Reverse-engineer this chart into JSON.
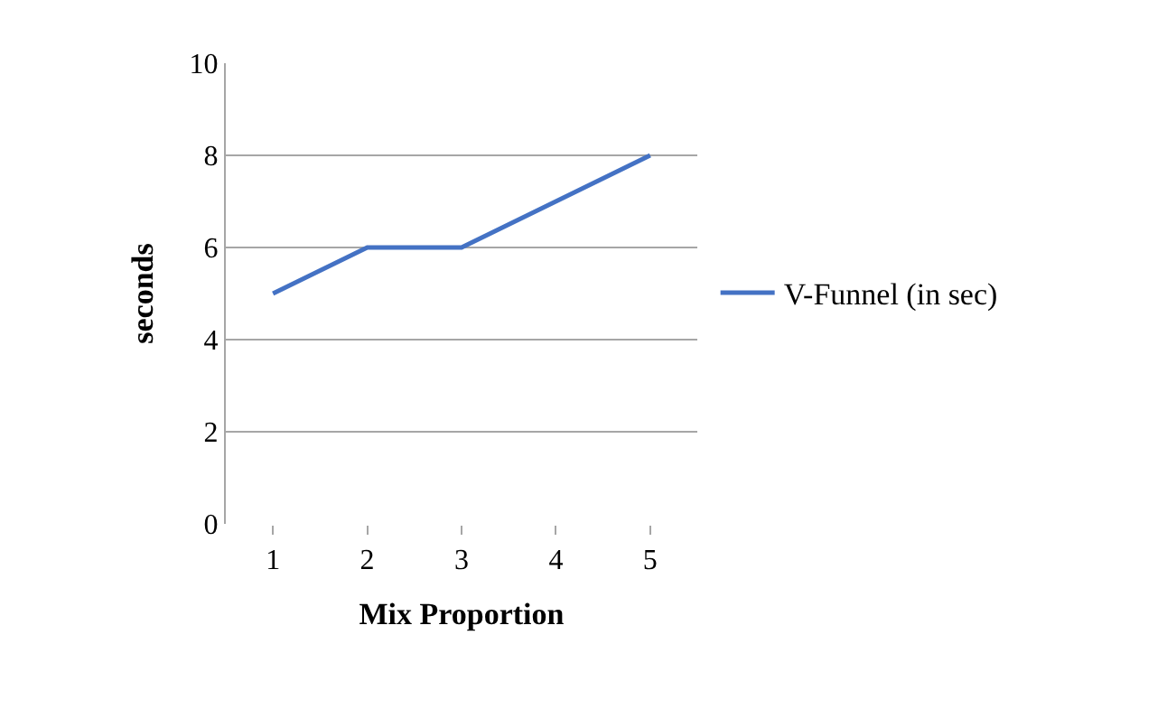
{
  "chart_data": {
    "type": "line",
    "xlabel": "Mix Proportion",
    "ylabel": "seconds",
    "categories": [
      "1",
      "2",
      "3",
      "4",
      "5"
    ],
    "series": [
      {
        "name": "V-Funnel (in sec)",
        "color": "#4472c4",
        "values": [
          5,
          6,
          6,
          7,
          8
        ]
      }
    ],
    "ylim": [
      0,
      10
    ],
    "yticks": [
      0,
      2,
      4,
      6,
      8,
      10
    ],
    "grid": "y",
    "legend": "right",
    "marker": "none",
    "line_style": "solid"
  }
}
